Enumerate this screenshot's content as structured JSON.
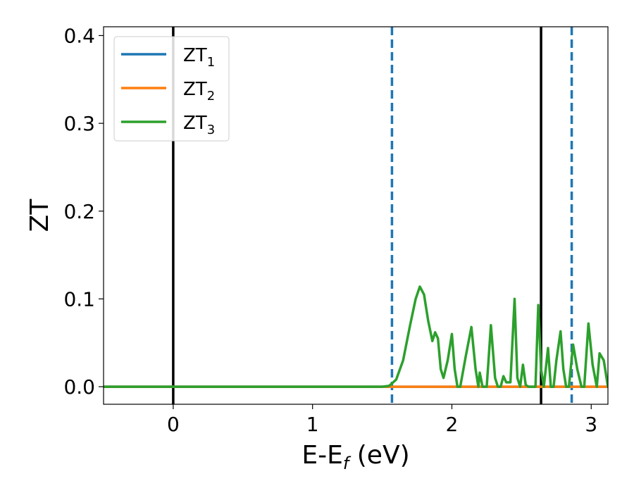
{
  "chart_data": {
    "type": "line",
    "xlabel_main": "E-E",
    "xlabel_sub": "f",
    "xlabel_unit": " (eV)",
    "ylabel": "ZT",
    "xlim": [
      -0.5,
      3.12
    ],
    "ylim": [
      -0.02,
      0.41
    ],
    "xticks": [
      0,
      1,
      2,
      3
    ],
    "xtick_labels": [
      "0",
      "1",
      "2",
      "3"
    ],
    "yticks": [
      0.0,
      0.1,
      0.2,
      0.3,
      0.4
    ],
    "ytick_labels": [
      "0.0",
      "0.1",
      "0.2",
      "0.3",
      "0.4"
    ],
    "grid": false,
    "legend_position": "top-left",
    "vertical_lines": [
      {
        "x": 0.0,
        "style": "solid",
        "color": "#000000"
      },
      {
        "x": 2.64,
        "style": "solid",
        "color": "#000000"
      },
      {
        "x": 1.57,
        "style": "dashed",
        "color": "#1f77b4"
      },
      {
        "x": 2.86,
        "style": "dashed",
        "color": "#1f77b4"
      }
    ],
    "series": [
      {
        "name": "ZT",
        "name_sub": "1",
        "color": "#1f77b4",
        "x": [
          -0.5,
          3.12
        ],
        "y": [
          0.0,
          0.0
        ]
      },
      {
        "name": "ZT",
        "name_sub": "2",
        "color": "#ff7f0e",
        "x": [
          -0.5,
          3.12
        ],
        "y": [
          0.0,
          0.0
        ]
      },
      {
        "name": "ZT",
        "name_sub": "3",
        "color": "#2ca02c",
        "x": [
          -0.5,
          1.5,
          1.55,
          1.6,
          1.65,
          1.7,
          1.74,
          1.77,
          1.8,
          1.83,
          1.86,
          1.88,
          1.9,
          1.92,
          1.94,
          1.97,
          2.0,
          2.02,
          2.04,
          2.06,
          2.1,
          2.14,
          2.17,
          2.19,
          2.2,
          2.22,
          2.25,
          2.28,
          2.31,
          2.33,
          2.35,
          2.37,
          2.39,
          2.42,
          2.45,
          2.47,
          2.49,
          2.51,
          2.53,
          2.55,
          2.57,
          2.6,
          2.62,
          2.64,
          2.66,
          2.69,
          2.71,
          2.73,
          2.75,
          2.78,
          2.8,
          2.82,
          2.84,
          2.87,
          2.9,
          2.93,
          2.95,
          2.98,
          3.01,
          3.04,
          3.06,
          3.09,
          3.12
        ],
        "y": [
          0.0,
          0.0,
          0.001,
          0.008,
          0.03,
          0.07,
          0.1,
          0.114,
          0.105,
          0.075,
          0.052,
          0.062,
          0.055,
          0.02,
          0.01,
          0.03,
          0.06,
          0.02,
          0.0,
          0.0,
          0.035,
          0.068,
          0.02,
          0.0,
          0.016,
          0.0,
          0.0,
          0.07,
          0.01,
          0.0,
          0.0,
          0.012,
          0.005,
          0.005,
          0.1,
          0.01,
          0.0,
          0.025,
          0.002,
          0.0,
          0.0,
          0.0,
          0.093,
          0.02,
          0.0,
          0.044,
          0.0,
          0.0,
          0.03,
          0.063,
          0.02,
          0.0,
          0.0,
          0.048,
          0.02,
          0.0,
          0.0,
          0.072,
          0.025,
          0.0,
          0.038,
          0.03,
          0.0
        ]
      }
    ]
  }
}
